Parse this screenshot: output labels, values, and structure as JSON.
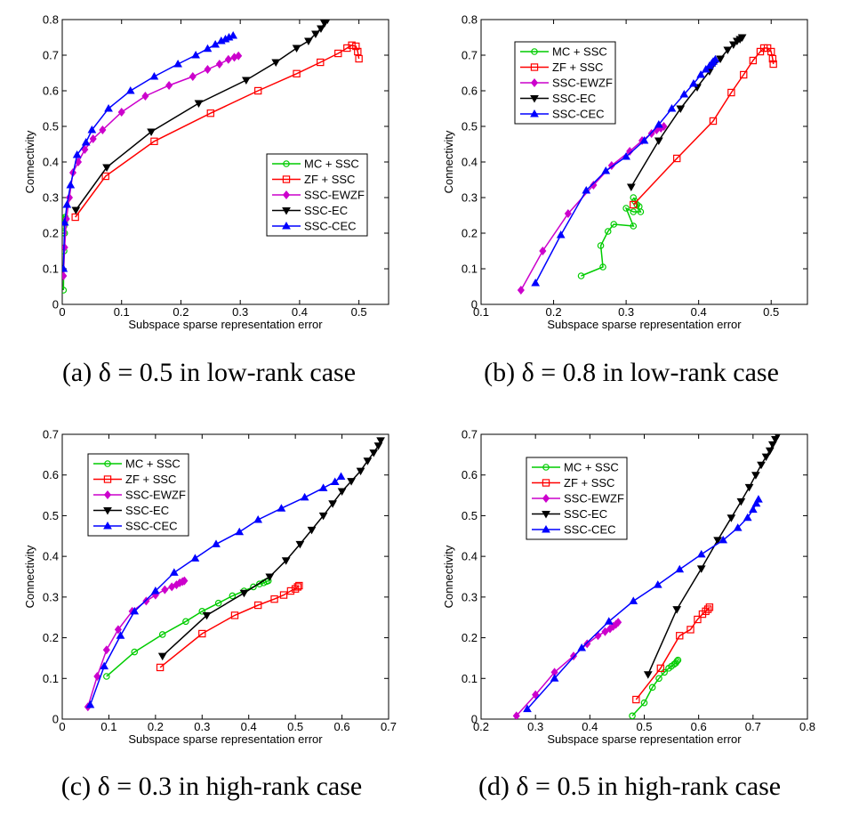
{
  "chart_data": [
    {
      "type": "line",
      "caption": "(a) δ = 0.5 in low-rank case",
      "xlabel": "Subspace sparse representation error",
      "ylabel": "Connectivity",
      "xlim": [
        0,
        0.55
      ],
      "ylim": [
        0,
        0.8
      ],
      "xticks": [
        "0",
        "0.1",
        "0.2",
        "0.3",
        "0.4",
        "0.5"
      ],
      "yticks": [
        "0",
        "0.1",
        "0.2",
        "0.3",
        "0.4",
        "0.5",
        "0.6",
        "0.7",
        "0.8"
      ],
      "legend": "center-right",
      "series": [
        {
          "name": "MC + SSC",
          "color": "#00cc00",
          "marker": "circle",
          "x": [
            0.002,
            0.003,
            0.004,
            0.003,
            0.004,
            0.006,
            0.005,
            0.004
          ],
          "y": [
            0.04,
            0.15,
            0.2,
            0.22,
            0.23,
            0.24,
            0.245,
            0.24
          ]
        },
        {
          "name": "ZF + SSC",
          "color": "#ff0000",
          "marker": "square",
          "x": [
            0.022,
            0.073,
            0.155,
            0.25,
            0.33,
            0.395,
            0.435,
            0.465,
            0.48,
            0.488,
            0.495,
            0.498,
            0.5
          ],
          "y": [
            0.245,
            0.36,
            0.458,
            0.537,
            0.6,
            0.648,
            0.68,
            0.705,
            0.72,
            0.728,
            0.725,
            0.71,
            0.69
          ]
        },
        {
          "name": "SSC-EWZF",
          "color": "#cc00cc",
          "marker": "diamond",
          "x": [
            0.002,
            0.004,
            0.007,
            0.012,
            0.018,
            0.027,
            0.038,
            0.052,
            0.068,
            0.1,
            0.14,
            0.18,
            0.22,
            0.245,
            0.265,
            0.28,
            0.29,
            0.297
          ],
          "y": [
            0.08,
            0.16,
            0.24,
            0.3,
            0.37,
            0.4,
            0.435,
            0.465,
            0.49,
            0.54,
            0.585,
            0.615,
            0.64,
            0.66,
            0.675,
            0.688,
            0.694,
            0.698
          ]
        },
        {
          "name": "SSC-EC",
          "color": "#000000",
          "marker": "triangle-down",
          "x": [
            0.023,
            0.075,
            0.15,
            0.23,
            0.31,
            0.36,
            0.395,
            0.415,
            0.427,
            0.436,
            0.442,
            0.447
          ],
          "y": [
            0.265,
            0.385,
            0.485,
            0.565,
            0.63,
            0.68,
            0.72,
            0.74,
            0.76,
            0.775,
            0.79,
            0.8
          ]
        },
        {
          "name": "SSC-CEC",
          "color": "#0000ff",
          "marker": "triangle-up",
          "x": [
            0.002,
            0.004,
            0.008,
            0.014,
            0.025,
            0.04,
            0.05,
            0.078,
            0.115,
            0.155,
            0.195,
            0.225,
            0.245,
            0.258,
            0.268,
            0.275,
            0.281,
            0.288
          ],
          "y": [
            0.1,
            0.23,
            0.28,
            0.335,
            0.42,
            0.455,
            0.49,
            0.55,
            0.6,
            0.64,
            0.675,
            0.7,
            0.718,
            0.73,
            0.74,
            0.745,
            0.75,
            0.755
          ]
        }
      ]
    },
    {
      "type": "line",
      "caption": "(b) δ = 0.8 in low-rank case",
      "xlabel": "Subspace sparse representation error",
      "ylabel": "Connectivity",
      "xlim": [
        0.1,
        0.55
      ],
      "ylim": [
        0,
        0.8
      ],
      "xticks": [
        "0.1",
        "0.2",
        "0.3",
        "0.4",
        "0.5"
      ],
      "yticks": [
        "0",
        "0.1",
        "0.2",
        "0.3",
        "0.4",
        "0.5",
        "0.6",
        "0.7",
        "0.8"
      ],
      "legend": "top-left",
      "series": [
        {
          "name": "MC + SSC",
          "color": "#00cc00",
          "marker": "circle",
          "x": [
            0.238,
            0.268,
            0.265,
            0.275,
            0.283,
            0.31,
            0.3,
            0.31,
            0.32,
            0.315,
            0.312,
            0.318,
            0.31
          ],
          "y": [
            0.08,
            0.105,
            0.165,
            0.205,
            0.225,
            0.22,
            0.27,
            0.26,
            0.26,
            0.28,
            0.29,
            0.275,
            0.3
          ]
        },
        {
          "name": "ZF + SSC",
          "color": "#ff0000",
          "marker": "square",
          "x": [
            0.31,
            0.37,
            0.42,
            0.445,
            0.462,
            0.475,
            0.485,
            0.49,
            0.495,
            0.5,
            0.502,
            0.503
          ],
          "y": [
            0.28,
            0.41,
            0.515,
            0.595,
            0.645,
            0.685,
            0.71,
            0.72,
            0.72,
            0.71,
            0.69,
            0.675
          ]
        },
        {
          "name": "SSC-EWZF",
          "color": "#cc00cc",
          "marker": "diamond",
          "x": [
            0.155,
            0.185,
            0.22,
            0.255,
            0.28,
            0.305,
            0.322,
            0.335,
            0.342,
            0.348,
            0.352
          ],
          "y": [
            0.04,
            0.15,
            0.255,
            0.335,
            0.39,
            0.43,
            0.46,
            0.48,
            0.49,
            0.495,
            0.5
          ]
        },
        {
          "name": "SSC-EC",
          "color": "#000000",
          "marker": "triangle-down",
          "x": [
            0.307,
            0.345,
            0.375,
            0.398,
            0.415,
            0.43,
            0.44,
            0.448,
            0.453,
            0.457,
            0.46
          ],
          "y": [
            0.33,
            0.46,
            0.55,
            0.61,
            0.655,
            0.69,
            0.715,
            0.73,
            0.74,
            0.745,
            0.75
          ]
        },
        {
          "name": "SSC-CEC",
          "color": "#0000ff",
          "marker": "triangle-up",
          "x": [
            0.175,
            0.21,
            0.245,
            0.272,
            0.3,
            0.325,
            0.345,
            0.363,
            0.38,
            0.393,
            0.403,
            0.41,
            0.415,
            0.418,
            0.42,
            0.423
          ],
          "y": [
            0.06,
            0.195,
            0.32,
            0.375,
            0.415,
            0.46,
            0.505,
            0.55,
            0.59,
            0.62,
            0.645,
            0.66,
            0.67,
            0.677,
            0.682,
            0.688
          ]
        }
      ]
    },
    {
      "type": "line",
      "caption": "(c) δ = 0.3 in high-rank case",
      "xlabel": "Subspace sparse representation error",
      "ylabel": "Connectivity",
      "xlim": [
        0,
        0.7
      ],
      "ylim": [
        0,
        0.7
      ],
      "xticks": [
        "0",
        "0.1",
        "0.2",
        "0.3",
        "0.4",
        "0.5",
        "0.6",
        "0.7"
      ],
      "yticks": [
        "0",
        "0.1",
        "0.2",
        "0.3",
        "0.4",
        "0.5",
        "0.6",
        "0.7"
      ],
      "legend": "top-left",
      "series": [
        {
          "name": "MC + SSC",
          "color": "#00cc00",
          "marker": "circle",
          "x": [
            0.095,
            0.155,
            0.215,
            0.265,
            0.3,
            0.335,
            0.365,
            0.39,
            0.41,
            0.423,
            0.432,
            0.438,
            0.442
          ],
          "y": [
            0.105,
            0.165,
            0.208,
            0.24,
            0.265,
            0.285,
            0.303,
            0.315,
            0.325,
            0.332,
            0.335,
            0.338,
            0.34
          ]
        },
        {
          "name": "ZF + SSC",
          "color": "#ff0000",
          "marker": "square",
          "x": [
            0.21,
            0.3,
            0.37,
            0.42,
            0.455,
            0.475,
            0.49,
            0.5,
            0.505,
            0.508
          ],
          "y": [
            0.127,
            0.21,
            0.255,
            0.28,
            0.295,
            0.305,
            0.315,
            0.32,
            0.325,
            0.328
          ]
        },
        {
          "name": "SSC-EWZF",
          "color": "#cc00cc",
          "marker": "diamond",
          "x": [
            0.055,
            0.075,
            0.095,
            0.12,
            0.15,
            0.18,
            0.2,
            0.22,
            0.235,
            0.245,
            0.252,
            0.258,
            0.262
          ],
          "y": [
            0.03,
            0.105,
            0.17,
            0.22,
            0.265,
            0.29,
            0.305,
            0.318,
            0.325,
            0.33,
            0.335,
            0.338,
            0.34
          ]
        },
        {
          "name": "SSC-EC",
          "color": "#000000",
          "marker": "triangle-down",
          "x": [
            0.215,
            0.31,
            0.39,
            0.445,
            0.48,
            0.51,
            0.535,
            0.56,
            0.58,
            0.6,
            0.62,
            0.64,
            0.655,
            0.668,
            0.678,
            0.683
          ],
          "y": [
            0.155,
            0.255,
            0.31,
            0.35,
            0.39,
            0.43,
            0.465,
            0.5,
            0.53,
            0.56,
            0.585,
            0.61,
            0.635,
            0.655,
            0.672,
            0.685
          ]
        },
        {
          "name": "SSC-CEC",
          "color": "#0000ff",
          "marker": "triangle-up",
          "x": [
            0.06,
            0.09,
            0.125,
            0.155,
            0.2,
            0.24,
            0.285,
            0.33,
            0.38,
            0.42,
            0.47,
            0.52,
            0.56,
            0.585,
            0.598
          ],
          "y": [
            0.035,
            0.13,
            0.205,
            0.265,
            0.315,
            0.36,
            0.395,
            0.43,
            0.46,
            0.49,
            0.518,
            0.545,
            0.568,
            0.583,
            0.596
          ]
        }
      ]
    },
    {
      "type": "line",
      "caption": "(d) δ = 0.5 in high-rank case",
      "xlabel": "Subspace sparse representation error",
      "ylabel": "Connectivity",
      "xlim": [
        0.2,
        0.8
      ],
      "ylim": [
        0,
        0.7
      ],
      "xticks": [
        "0.2",
        "0.3",
        "0.4",
        "0.5",
        "0.6",
        "0.7",
        "0.8"
      ],
      "yticks": [
        "0",
        "0.1",
        "0.2",
        "0.3",
        "0.4",
        "0.5",
        "0.6",
        "0.7"
      ],
      "legend": "top-left",
      "series": [
        {
          "name": "MC + SSC",
          "color": "#00cc00",
          "marker": "circle",
          "x": [
            0.478,
            0.5,
            0.515,
            0.527,
            0.537,
            0.545,
            0.55,
            0.555,
            0.558,
            0.56,
            0.562
          ],
          "y": [
            0.008,
            0.04,
            0.078,
            0.1,
            0.115,
            0.125,
            0.13,
            0.135,
            0.138,
            0.142,
            0.145
          ]
        },
        {
          "name": "ZF + SSC",
          "color": "#ff0000",
          "marker": "square",
          "x": [
            0.485,
            0.53,
            0.565,
            0.585,
            0.598,
            0.607,
            0.613,
            0.617,
            0.62
          ],
          "y": [
            0.048,
            0.125,
            0.205,
            0.22,
            0.245,
            0.258,
            0.265,
            0.27,
            0.275
          ]
        },
        {
          "name": "SSC-EWZF",
          "color": "#cc00cc",
          "marker": "diamond",
          "x": [
            0.265,
            0.3,
            0.335,
            0.37,
            0.395,
            0.415,
            0.428,
            0.437,
            0.443,
            0.448,
            0.452
          ],
          "y": [
            0.008,
            0.06,
            0.115,
            0.155,
            0.185,
            0.205,
            0.215,
            0.222,
            0.228,
            0.233,
            0.238
          ]
        },
        {
          "name": "SSC-EC",
          "color": "#000000",
          "marker": "triangle-down",
          "x": [
            0.507,
            0.56,
            0.605,
            0.635,
            0.66,
            0.678,
            0.693,
            0.705,
            0.715,
            0.724,
            0.731,
            0.736,
            0.741,
            0.745
          ],
          "y": [
            0.11,
            0.27,
            0.37,
            0.44,
            0.495,
            0.535,
            0.57,
            0.6,
            0.625,
            0.645,
            0.66,
            0.675,
            0.688,
            0.698
          ]
        },
        {
          "name": "SSC-CEC",
          "color": "#0000ff",
          "marker": "triangle-up",
          "x": [
            0.285,
            0.335,
            0.385,
            0.435,
            0.48,
            0.525,
            0.565,
            0.605,
            0.645,
            0.672,
            0.69,
            0.7,
            0.706,
            0.71
          ],
          "y": [
            0.025,
            0.1,
            0.175,
            0.24,
            0.29,
            0.33,
            0.368,
            0.405,
            0.44,
            0.47,
            0.495,
            0.515,
            0.53,
            0.54
          ]
        }
      ]
    }
  ]
}
